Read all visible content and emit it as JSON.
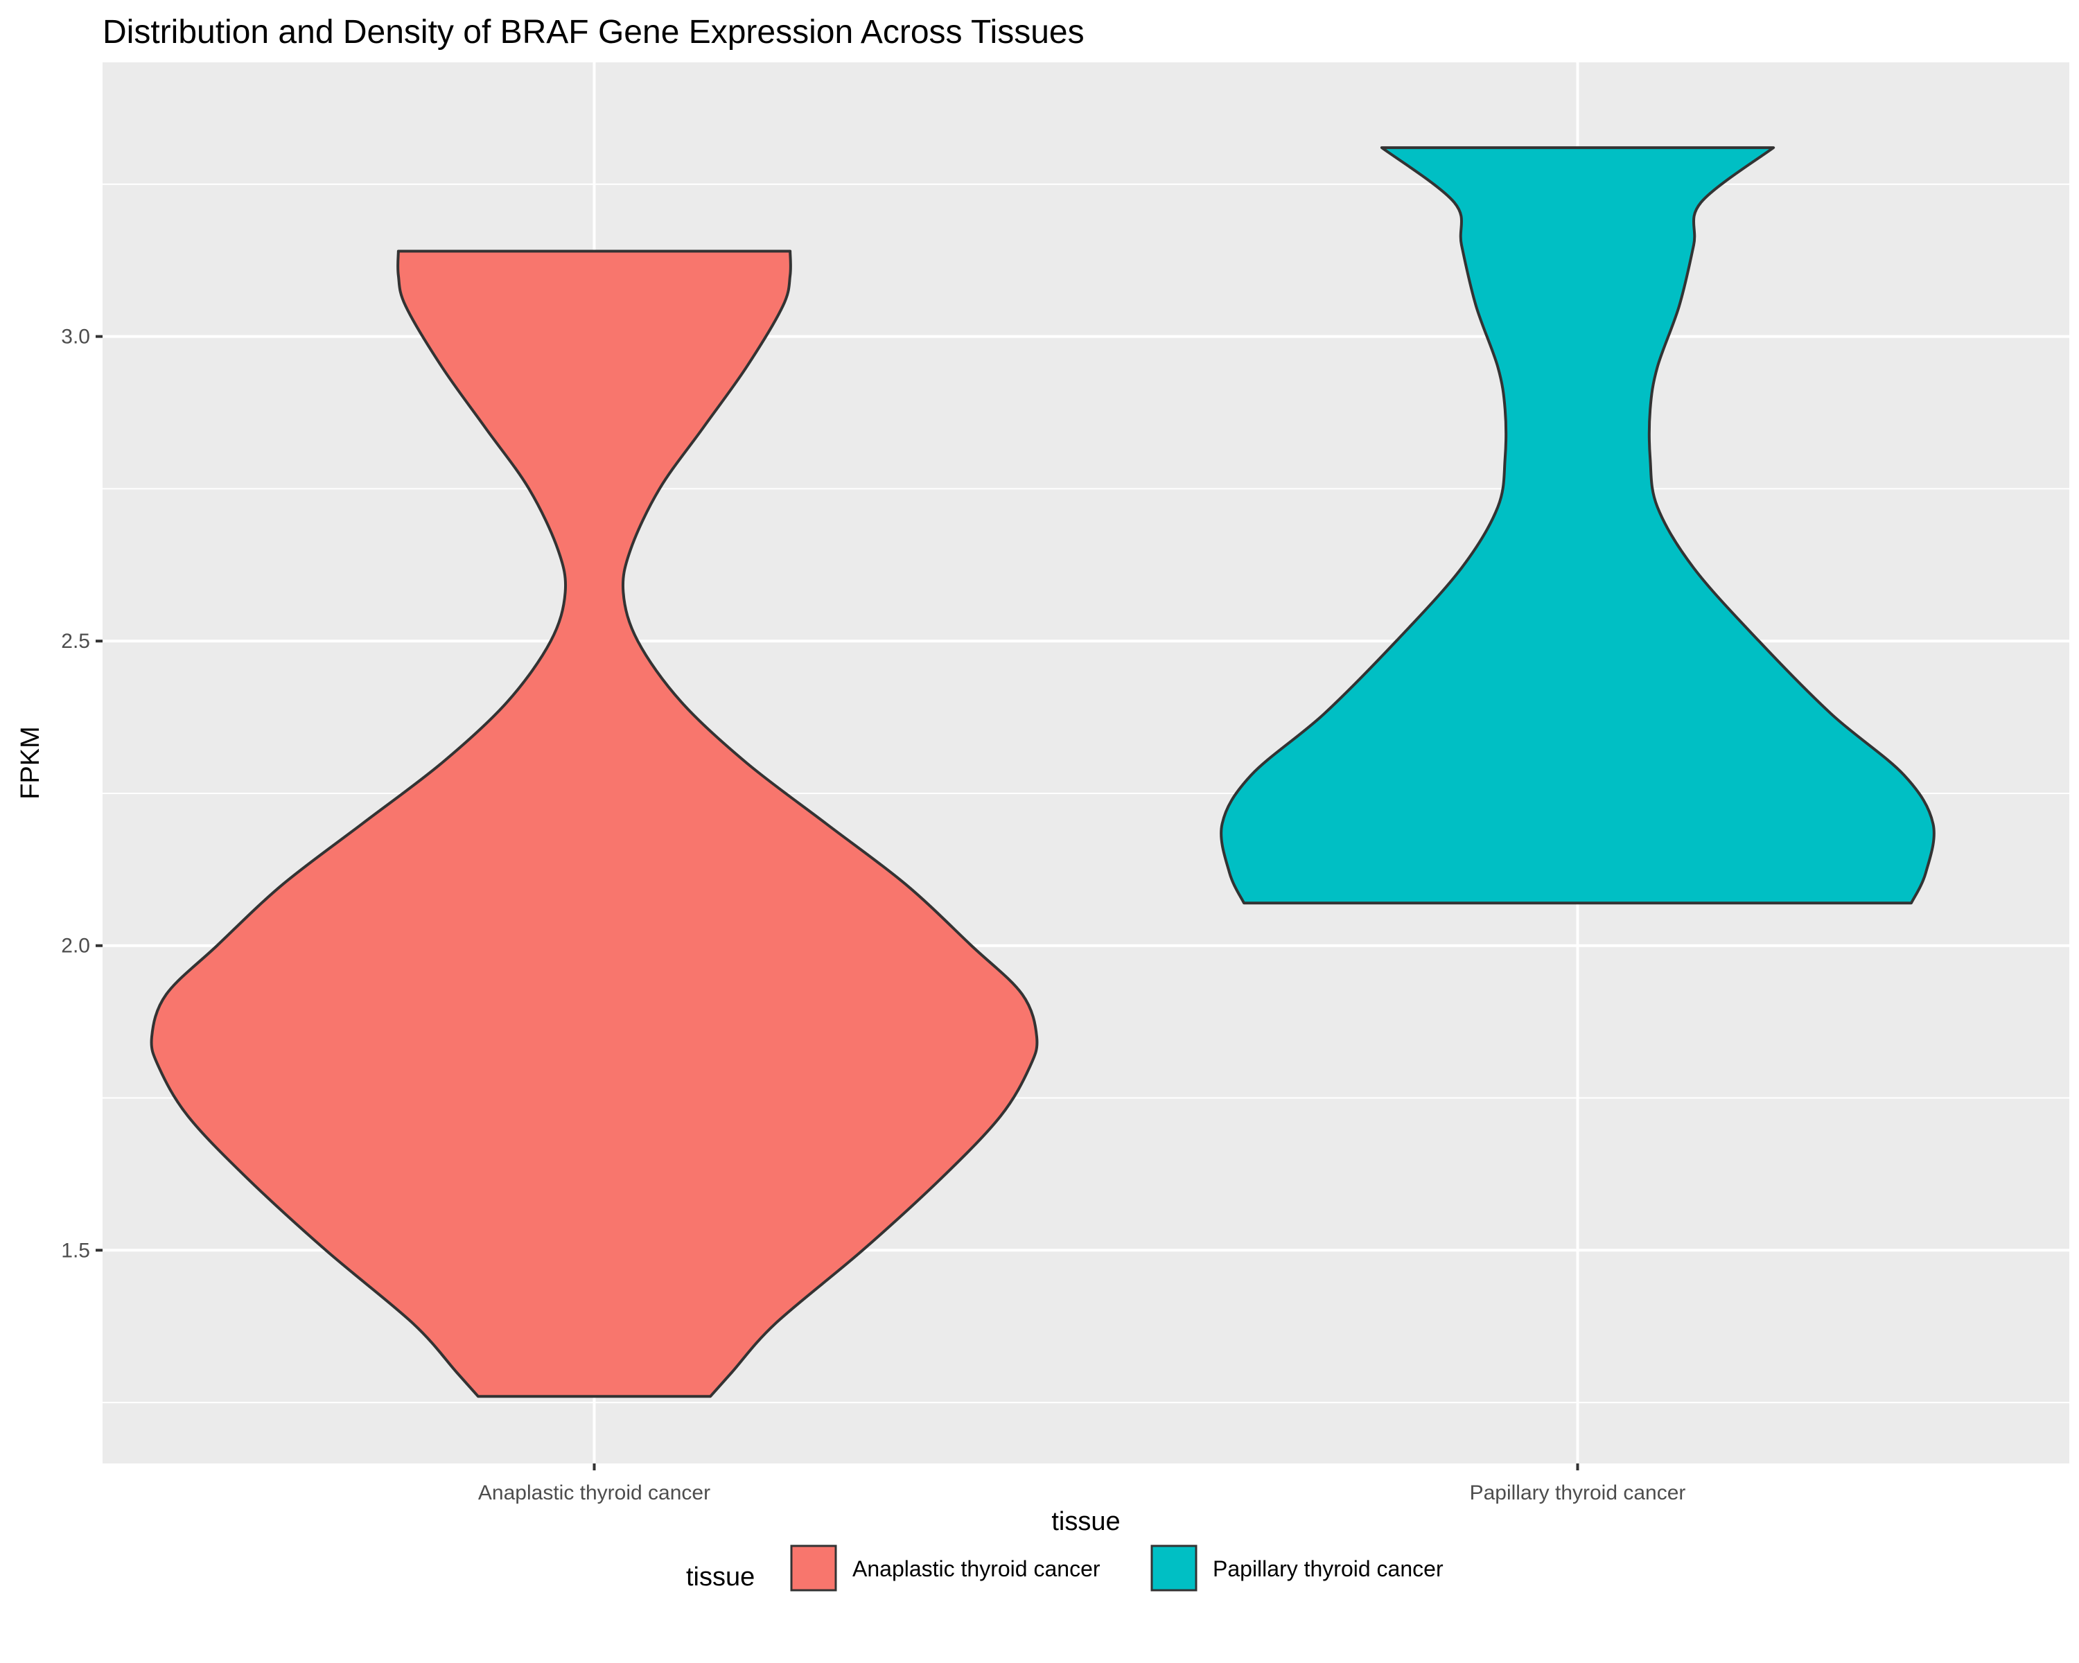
{
  "chart_data": {
    "type": "violin",
    "title": "Distribution and Density of BRAF Gene Expression Across Tissues",
    "xlabel": "tissue",
    "ylabel": "FPKM",
    "categories": [
      "Anaplastic thyroid cancer",
      "Papillary thyroid cancer"
    ],
    "ylim": [
      1.15,
      3.45
    ],
    "y_ticks": [
      1.5,
      2.0,
      2.5,
      3.0
    ],
    "y_tick_labels": [
      "1.5",
      "2.0",
      "2.5",
      "3.0"
    ],
    "grid": true,
    "legend": {
      "title": "tissue",
      "position": "bottom",
      "entries": [
        "Anaplastic thyroid cancer",
        "Papillary thyroid cancer"
      ]
    },
    "colors": {
      "Anaplastic thyroid cancer": "#F8766D",
      "Papillary thyroid cancer": "#00BFC4"
    },
    "series": [
      {
        "category": "Anaplastic thyroid cancer",
        "min": 1.26,
        "max": 3.14,
        "density_profile": [
          [
            1.26,
            0.16
          ],
          [
            1.3,
            0.19
          ],
          [
            1.38,
            0.25
          ],
          [
            1.5,
            0.37
          ],
          [
            1.62,
            0.48
          ],
          [
            1.72,
            0.56
          ],
          [
            1.8,
            0.6
          ],
          [
            1.85,
            0.61
          ],
          [
            1.92,
            0.59
          ],
          [
            2.0,
            0.52
          ],
          [
            2.1,
            0.43
          ],
          [
            2.2,
            0.32
          ],
          [
            2.3,
            0.21
          ],
          [
            2.4,
            0.12
          ],
          [
            2.5,
            0.06
          ],
          [
            2.58,
            0.04
          ],
          [
            2.65,
            0.05
          ],
          [
            2.75,
            0.09
          ],
          [
            2.85,
            0.15
          ],
          [
            2.95,
            0.21
          ],
          [
            3.05,
            0.26
          ],
          [
            3.1,
            0.27
          ],
          [
            3.14,
            0.27
          ]
        ]
      },
      {
        "category": "Papillary thyroid cancer",
        "min": 2.07,
        "max": 3.31,
        "density_profile": [
          [
            2.07,
            0.46
          ],
          [
            2.12,
            0.48
          ],
          [
            2.2,
            0.49
          ],
          [
            2.28,
            0.45
          ],
          [
            2.38,
            0.35
          ],
          [
            2.5,
            0.25
          ],
          [
            2.62,
            0.16
          ],
          [
            2.72,
            0.11
          ],
          [
            2.8,
            0.1
          ],
          [
            2.88,
            0.1
          ],
          [
            2.95,
            0.11
          ],
          [
            3.05,
            0.14
          ],
          [
            3.15,
            0.16
          ],
          [
            3.22,
            0.17
          ],
          [
            3.31,
            0.27
          ]
        ]
      }
    ]
  }
}
